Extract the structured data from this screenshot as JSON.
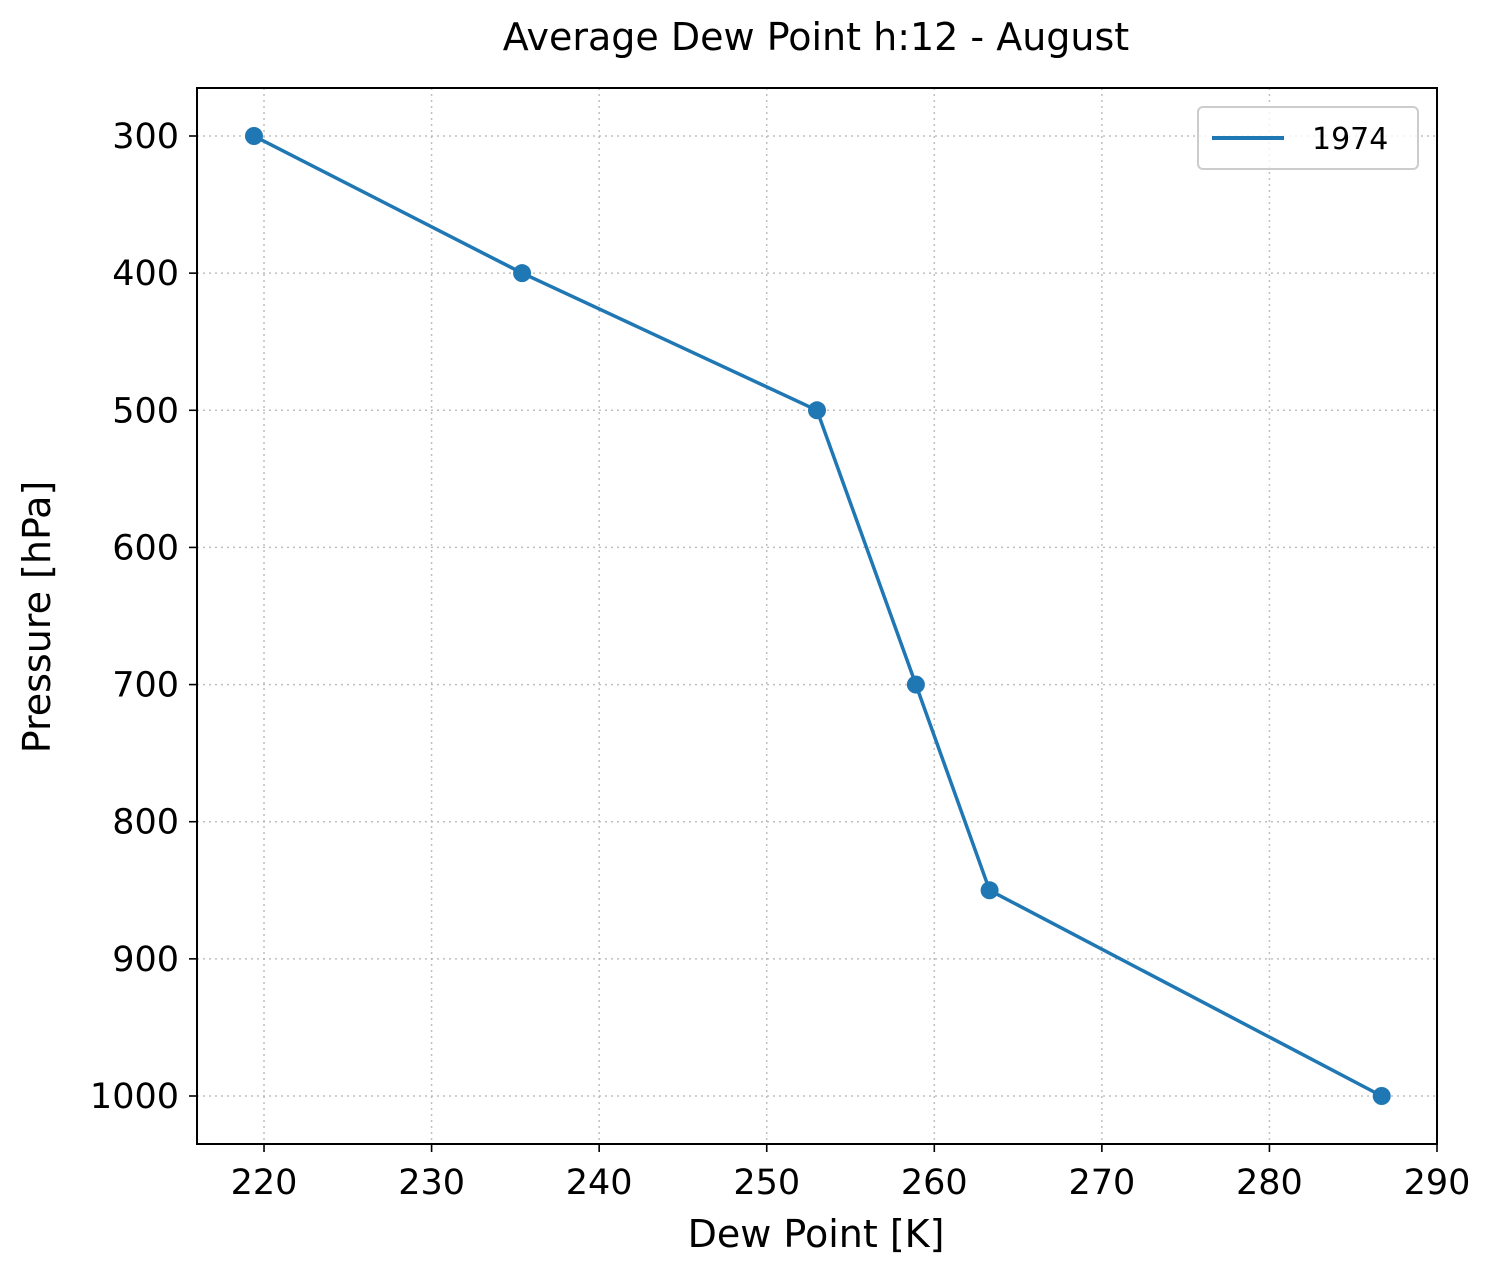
{
  "chart_data": {
    "type": "line",
    "title": "Average Dew Point h:12 - August",
    "xlabel": "Dew Point [K]",
    "ylabel": "Pressure [hPa]",
    "xlim": [
      216,
      290
    ],
    "ylim": [
      1035,
      265
    ],
    "y_inverted": true,
    "x_ticks": [
      220,
      230,
      240,
      250,
      260,
      270,
      280,
      290
    ],
    "y_ticks": [
      300,
      400,
      500,
      600,
      700,
      800,
      900,
      1000
    ],
    "grid": true,
    "legend_position": "top-right",
    "series": [
      {
        "name": "1974",
        "color": "#1f77b4",
        "marker": "circle",
        "x": [
          219.4,
          235.4,
          253.0,
          258.9,
          263.3,
          286.7
        ],
        "y": [
          300,
          400,
          500,
          700,
          850,
          1000
        ]
      }
    ]
  }
}
